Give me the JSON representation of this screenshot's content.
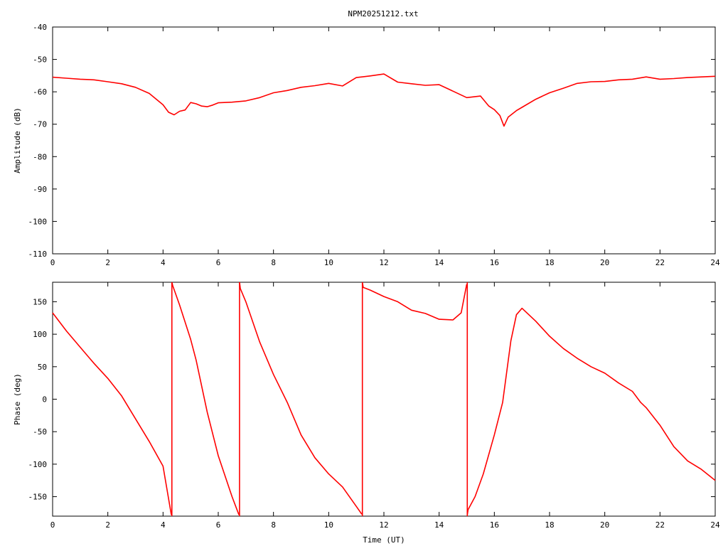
{
  "chart_data": [
    {
      "type": "line",
      "title": "NPM20251212.txt",
      "xlabel": "",
      "ylabel": "Amplitude (dB)",
      "xlim": [
        0,
        24
      ],
      "ylim": [
        -110,
        -40
      ],
      "xticks": [
        "0",
        "2",
        "4",
        "6",
        "8",
        "10",
        "12",
        "14",
        "16",
        "18",
        "20",
        "22",
        "24"
      ],
      "yticks": [
        "-40",
        "-50",
        "-60",
        "-70",
        "-80",
        "-90",
        "-100",
        "-110"
      ],
      "grid": false,
      "color": "#ff0000",
      "x": [
        0,
        0.5,
        1,
        1.5,
        2,
        2.5,
        3,
        3.5,
        4,
        4.2,
        4.4,
        4.6,
        4.8,
        5,
        5.2,
        5.4,
        5.6,
        5.8,
        6,
        6.5,
        7,
        7.5,
        8,
        8.5,
        9,
        9.5,
        10,
        10.5,
        11,
        11.5,
        12,
        12.5,
        13,
        13.5,
        14,
        14.5,
        15,
        15.5,
        15.8,
        16,
        16.2,
        16.35,
        16.5,
        16.8,
        17,
        17.5,
        18,
        18.5,
        19,
        19.5,
        20,
        20.5,
        21,
        21.5,
        22,
        22.5,
        23,
        23.5,
        24
      ],
      "y": [
        -55.5,
        -55.8,
        -56.1,
        -56.3,
        -56.9,
        -57.5,
        -58.6,
        -60.5,
        -64,
        -66.3,
        -67.1,
        -66,
        -65.6,
        -63.3,
        -63.7,
        -64.4,
        -64.6,
        -64.1,
        -63.4,
        -63.2,
        -62.8,
        -61.8,
        -60.3,
        -59.6,
        -58.6,
        -58.1,
        -57.4,
        -58.2,
        -55.6,
        -55.1,
        -54.5,
        -57,
        -57.5,
        -58,
        -57.8,
        -59.8,
        -61.8,
        -61.3,
        -64.4,
        -65.5,
        -67.3,
        -70.6,
        -67.8,
        -65.8,
        -64.8,
        -62.3,
        -60.3,
        -58.9,
        -57.4,
        -56.9,
        -56.8,
        -56.3,
        -56.1,
        -55.4,
        -56.1,
        -55.9,
        -55.6,
        -55.4,
        -55.2
      ]
    },
    {
      "type": "line",
      "title": "",
      "xlabel": "Time (UT)",
      "ylabel": "Phase (deg)",
      "xlim": [
        0,
        24
      ],
      "ylim": [
        -180,
        180
      ],
      "xticks": [
        "0",
        "2",
        "4",
        "6",
        "8",
        "10",
        "12",
        "14",
        "16",
        "18",
        "20",
        "22",
        "24"
      ],
      "yticks": [
        "150",
        "100",
        "50",
        "0",
        "-50",
        "-100",
        "-150"
      ],
      "grid": false,
      "color": "#ff0000",
      "x": [
        0,
        0.5,
        1,
        1.5,
        2,
        2.5,
        3,
        3.5,
        4,
        4.3,
        4.32,
        4.35,
        4.6,
        5,
        5.2,
        5.6,
        6,
        6.5,
        6.75,
        6.77,
        6.8,
        7,
        7.5,
        8,
        8.5,
        9,
        9.5,
        10,
        10.5,
        11,
        11.2,
        11.22,
        11.25,
        11.5,
        12,
        12.5,
        13,
        13.5,
        14,
        14.5,
        14.8,
        15,
        15.02,
        15.05,
        15.3,
        15.6,
        16,
        16.3,
        16.6,
        16.8,
        17,
        17.5,
        18,
        18.5,
        19,
        19.5,
        20,
        20.5,
        21,
        21.3,
        21.5,
        22,
        22.5,
        23,
        23.5,
        24
      ],
      "y": [
        133,
        105,
        80,
        55,
        32,
        5,
        -30,
        -65,
        -103,
        -178,
        180,
        175,
        145,
        92,
        60,
        -20,
        -87,
        -150,
        -178,
        180,
        170,
        150,
        88,
        38,
        -5,
        -55,
        -90,
        -115,
        -135,
        -165,
        -177,
        180,
        172,
        168,
        158,
        150,
        137,
        132,
        123,
        122,
        133,
        177,
        -178,
        -170,
        -150,
        -115,
        -55,
        -5,
        90,
        130,
        140,
        120,
        97,
        78,
        63,
        50,
        40,
        25,
        12,
        -5,
        -13,
        -40,
        -73,
        -95,
        -108,
        -125
      ]
    }
  ]
}
